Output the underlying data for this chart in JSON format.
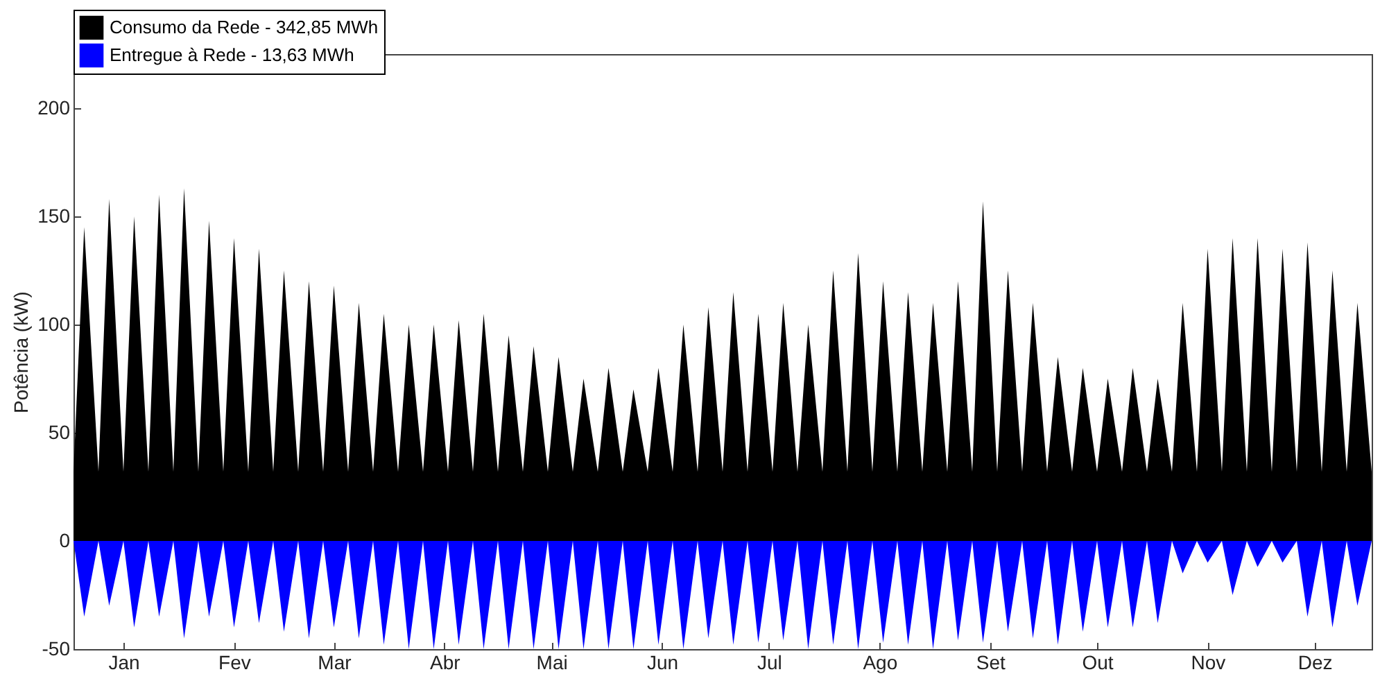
{
  "chart_data": {
    "type": "area",
    "ylabel": "Potência (kW)",
    "xlim": [
      "--01-01",
      "--12-31"
    ],
    "ylim": [
      -50,
      225
    ],
    "xticks": [
      {
        "value": "--01-15",
        "label": "Jan"
      },
      {
        "value": "--02-15",
        "label": "Fev"
      },
      {
        "value": "--03-15",
        "label": "Mar"
      },
      {
        "value": "--04-15",
        "label": "Abr"
      },
      {
        "value": "--05-15",
        "label": "Mai"
      },
      {
        "value": "--06-15",
        "label": "Jun"
      },
      {
        "value": "--07-15",
        "label": "Jul"
      },
      {
        "value": "--08-15",
        "label": "Ago"
      },
      {
        "value": "--09-15",
        "label": "Set"
      },
      {
        "value": "--10-15",
        "label": "Out"
      },
      {
        "value": "--11-15",
        "label": "Nov"
      },
      {
        "value": "--12-15",
        "label": "Dez"
      }
    ],
    "yticks": [
      -50,
      0,
      50,
      100,
      150,
      200
    ],
    "grid": false,
    "legend": "top",
    "marker": "none",
    "x": [
      "--01-01",
      "--01-04",
      "--01-08",
      "--01-11",
      "--01-15",
      "--01-18",
      "--01-22",
      "--01-25",
      "--01-29",
      "--02-01",
      "--02-05",
      "--02-08",
      "--02-12",
      "--02-15",
      "--02-19",
      "--02-22",
      "--02-26",
      "--03-01",
      "--03-05",
      "--03-08",
      "--03-12",
      "--03-15",
      "--03-19",
      "--03-22",
      "--03-26",
      "--03-29",
      "--04-02",
      "--04-05",
      "--04-09",
      "--04-12",
      "--04-16",
      "--04-19",
      "--04-23",
      "--04-26",
      "--04-30",
      "--05-03",
      "--05-07",
      "--05-10",
      "--05-14",
      "--05-17",
      "--05-21",
      "--05-24",
      "--05-28",
      "--05-31",
      "--06-04",
      "--06-07",
      "--06-11",
      "--06-14",
      "--06-18",
      "--06-21",
      "--06-25",
      "--06-28",
      "--07-02",
      "--07-05",
      "--07-09",
      "--07-12",
      "--07-16",
      "--07-19",
      "--07-23",
      "--07-26",
      "--07-30",
      "--08-02",
      "--08-06",
      "--08-09",
      "--08-13",
      "--08-16",
      "--08-20",
      "--08-23",
      "--08-27",
      "--08-30",
      "--09-03",
      "--09-06",
      "--09-10",
      "--09-13",
      "--09-17",
      "--09-20",
      "--09-24",
      "--09-27",
      "--10-01",
      "--10-04",
      "--10-08",
      "--10-11",
      "--10-15",
      "--10-18",
      "--10-22",
      "--10-25",
      "--10-29",
      "--11-01",
      "--11-05",
      "--11-08",
      "--11-12",
      "--11-15",
      "--11-19",
      "--11-22",
      "--11-26",
      "--11-29",
      "--12-03",
      "--12-06",
      "--12-10",
      "--12-13",
      "--12-17",
      "--12-20",
      "--12-24",
      "--12-27",
      "--12-31"
    ],
    "series": [
      {
        "name": "Consumo da Rede - 342,85 MWh",
        "color": "#000000",
        "values": [
          32,
          145,
          32,
          158,
          32,
          150,
          32,
          160,
          32,
          163,
          32,
          148,
          32,
          140,
          32,
          135,
          32,
          125,
          32,
          120,
          32,
          118,
          32,
          110,
          32,
          105,
          32,
          100,
          32,
          100,
          32,
          102,
          32,
          105,
          32,
          95,
          32,
          90,
          32,
          85,
          32,
          75,
          32,
          80,
          32,
          70,
          32,
          80,
          32,
          100,
          32,
          108,
          32,
          115,
          32,
          105,
          32,
          110,
          32,
          100,
          32,
          125,
          32,
          133,
          32,
          120,
          32,
          115,
          32,
          110,
          32,
          120,
          32,
          157,
          32,
          125,
          32,
          110,
          32,
          85,
          32,
          80,
          32,
          75,
          32,
          80,
          32,
          75,
          32,
          110,
          32,
          135,
          32,
          140,
          32,
          140,
          32,
          135,
          32,
          138,
          32,
          125,
          32,
          110,
          32
        ]
      },
      {
        "name": "Entregue à Rede - 13,63 MWh",
        "color": "#0000ff",
        "values": [
          0,
          -35,
          0,
          -30,
          0,
          -40,
          0,
          -35,
          0,
          -45,
          0,
          -35,
          0,
          -40,
          0,
          -38,
          0,
          -42,
          0,
          -45,
          0,
          -40,
          0,
          -45,
          0,
          -48,
          0,
          -50,
          0,
          -50,
          0,
          -48,
          0,
          -50,
          0,
          -50,
          0,
          -50,
          0,
          -50,
          0,
          -50,
          0,
          -50,
          0,
          -50,
          0,
          -48,
          0,
          -50,
          0,
          -45,
          0,
          -48,
          0,
          -47,
          0,
          -46,
          0,
          -50,
          0,
          -48,
          0,
          -50,
          0,
          -47,
          0,
          -48,
          0,
          -50,
          0,
          -46,
          0,
          -47,
          0,
          -42,
          0,
          -45,
          0,
          -48,
          0,
          -42,
          0,
          -40,
          0,
          -40,
          0,
          -38,
          0,
          -15,
          0,
          -10,
          0,
          -25,
          0,
          -12,
          0,
          -10,
          0,
          -35,
          0,
          -40,
          0,
          -30,
          0
        ]
      }
    ]
  }
}
